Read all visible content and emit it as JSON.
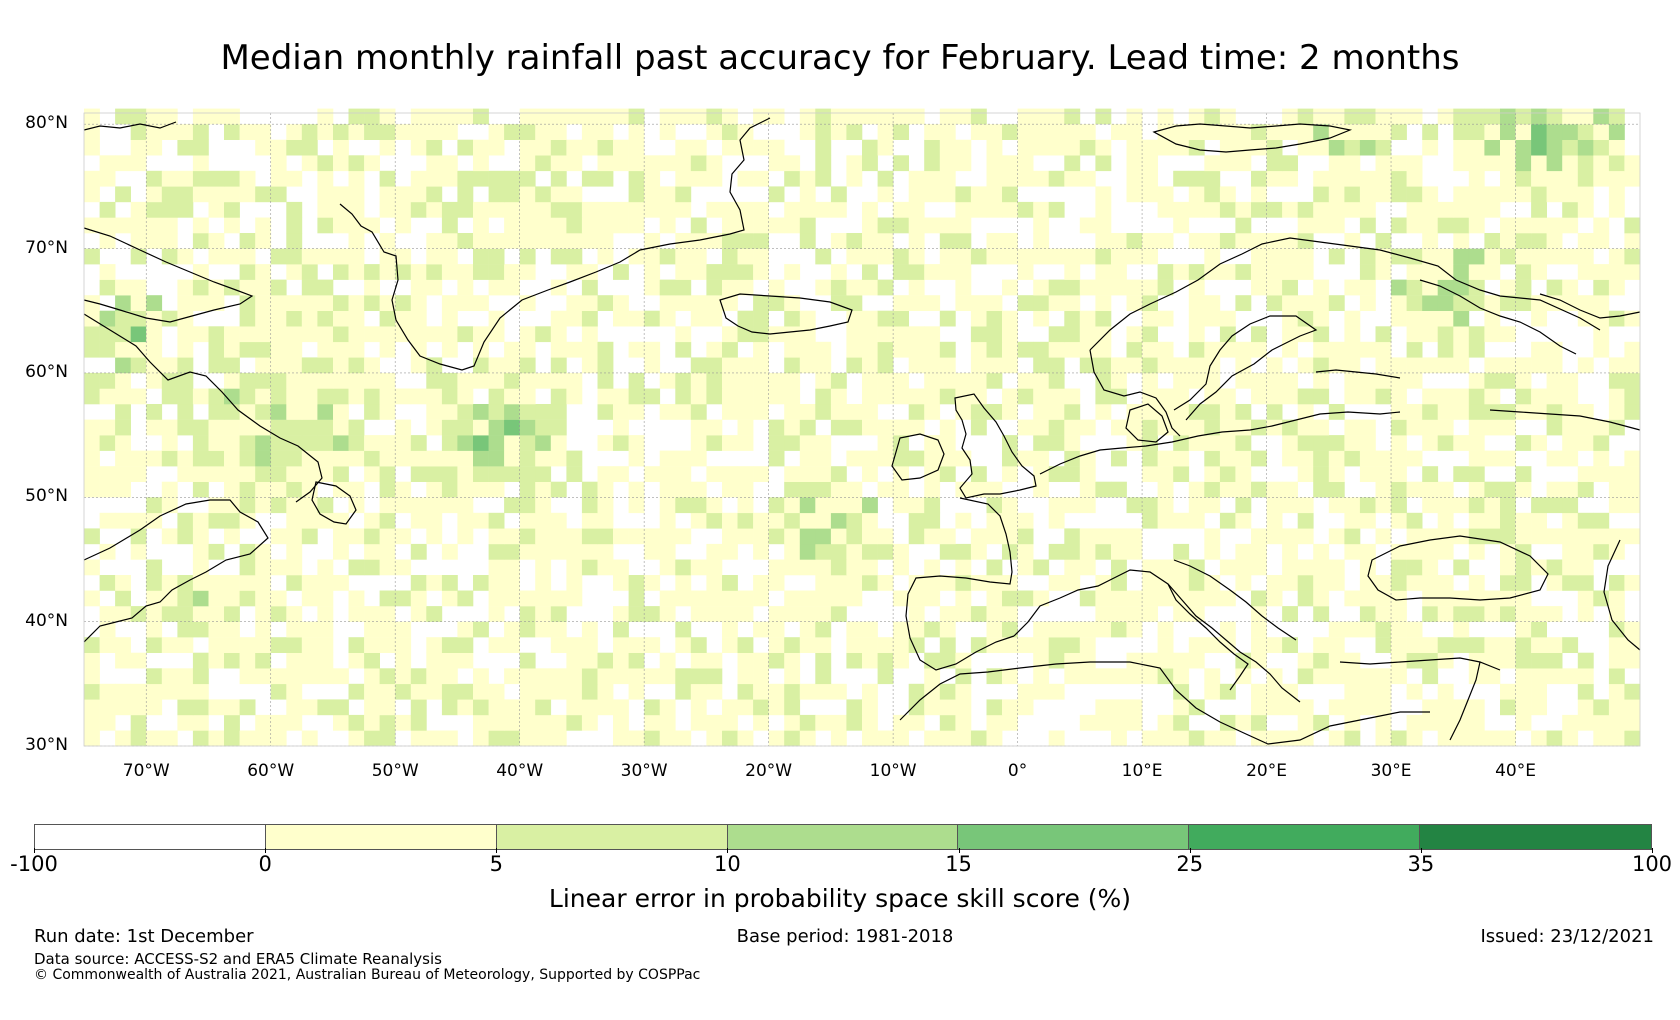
{
  "title": "Median monthly rainfall past accuracy for February. Lead time: 2 months",
  "map": {
    "lon_range": [
      -75,
      50
    ],
    "lat_range": [
      30,
      80.9
    ],
    "lat_labels": [
      {
        "lat": 80,
        "text": "80°N"
      },
      {
        "lat": 70,
        "text": "70°N"
      },
      {
        "lat": 60,
        "text": "60°N"
      },
      {
        "lat": 50,
        "text": "50°N"
      },
      {
        "lat": 40,
        "text": "40°N"
      },
      {
        "lat": 30,
        "text": "30°N"
      }
    ],
    "lon_labels": [
      {
        "lon": -70,
        "text": "70°W"
      },
      {
        "lon": -60,
        "text": "60°W"
      },
      {
        "lon": -50,
        "text": "50°W"
      },
      {
        "lon": -40,
        "text": "40°W"
      },
      {
        "lon": -30,
        "text": "30°W"
      },
      {
        "lon": -20,
        "text": "20°W"
      },
      {
        "lon": -10,
        "text": "10°W"
      },
      {
        "lon": 0,
        "text": "0°"
      },
      {
        "lon": 10,
        "text": "10°E"
      },
      {
        "lon": 20,
        "text": "20°E"
      },
      {
        "lon": 30,
        "text": "30°E"
      },
      {
        "lon": 40,
        "text": "40°E"
      }
    ],
    "coastline_color": "#000000",
    "gridline_color": "#999999"
  },
  "colorbar": {
    "label": "Linear error in probability space skill score (%)",
    "ticks": [
      "-100",
      "0",
      "5",
      "10",
      "15",
      "25",
      "35",
      "100"
    ],
    "bins": [
      {
        "from": "-100",
        "to": "0",
        "color": "#ffffff"
      },
      {
        "from": "0",
        "to": "5",
        "color": "#ffffcc"
      },
      {
        "from": "5",
        "to": "10",
        "color": "#d9f0a3"
      },
      {
        "from": "10",
        "to": "15",
        "color": "#addd8e"
      },
      {
        "from": "15",
        "to": "25",
        "color": "#78c679"
      },
      {
        "from": "25",
        "to": "35",
        "color": "#41ab5d"
      },
      {
        "from": "35",
        "to": "100",
        "color": "#238443"
      }
    ]
  },
  "footer": {
    "run_date": "Run date: 1st December",
    "base_period": "Base period: 1981-2018",
    "issued": "Issued: 23/12/2021",
    "data_source": "Data source: ACCESS-S2 and ERA5 Climate Reanalysis",
    "copyright": "© Commonwealth of Australia 2021, Australian Bureau of Meteorology, Supported by COSPPac"
  }
}
